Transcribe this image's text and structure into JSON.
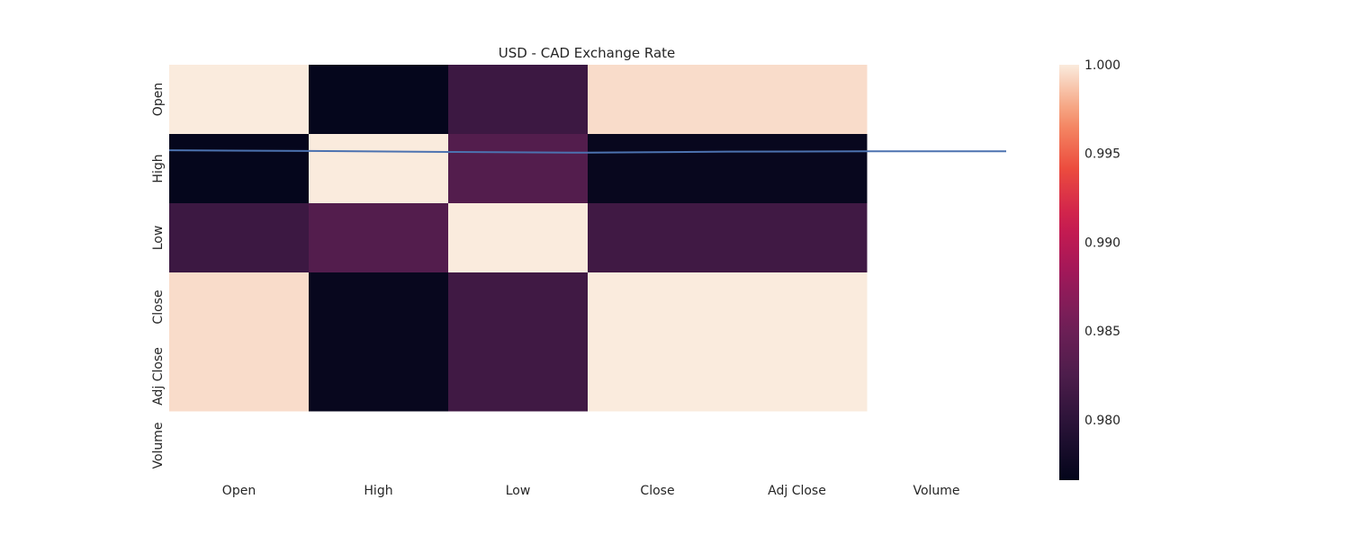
{
  "chart_data": {
    "type": "heatmap",
    "title": "USD - CAD Exchange Rate",
    "x_labels": [
      "Open",
      "High",
      "Low",
      "Close",
      "Adj Close",
      "Volume"
    ],
    "y_labels": [
      "Open",
      "High",
      "Low",
      "Close",
      "Adj Close",
      "Volume"
    ],
    "matrix": [
      [
        1.0,
        0.9768,
        0.9812,
        0.9995,
        0.9995,
        null
      ],
      [
        0.9768,
        1.0,
        0.983,
        0.977,
        0.977,
        null
      ],
      [
        0.9812,
        0.983,
        1.0,
        0.9815,
        0.9815,
        null
      ],
      [
        0.9995,
        0.977,
        0.9815,
        1.0,
        1.0,
        null
      ],
      [
        0.9995,
        0.977,
        0.9815,
        1.0,
        1.0,
        null
      ],
      [
        null,
        null,
        null,
        null,
        null,
        null
      ]
    ],
    "colorbar": {
      "min": 0.9766,
      "max": 1.0,
      "ticks": [
        0.98,
        0.985,
        0.99,
        0.995,
        1.0
      ],
      "tick_labels": [
        "0.980",
        "0.985",
        "0.990",
        "0.995",
        "1.000"
      ],
      "colormap": "rocket"
    },
    "overlay_line": {
      "x": [
        0,
        1,
        2,
        3,
        4,
        5,
        6
      ],
      "y": [
        1.235,
        1.245,
        1.26,
        1.27,
        1.255,
        1.25,
        1.25
      ],
      "y_range": [
        0.0,
        6.0
      ],
      "color": "#4c72b0"
    },
    "grid": false,
    "legend": "right"
  }
}
